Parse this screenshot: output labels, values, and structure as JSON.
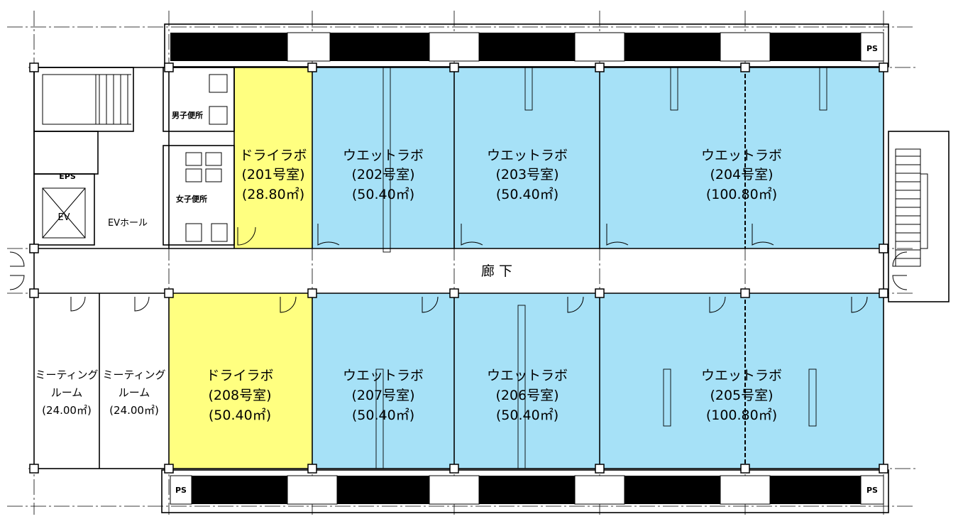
{
  "rooms": {
    "r201": {
      "name": "ドライラボ",
      "number": "(201号室)",
      "area": "(28.80㎡)"
    },
    "r202": {
      "name": "ウエットラボ",
      "number": "(202号室)",
      "area": "(50.40㎡)"
    },
    "r203": {
      "name": "ウエットラボ",
      "number": "(203号室)",
      "area": "(50.40㎡)"
    },
    "r204": {
      "name": "ウエットラボ",
      "number": "(204号室)",
      "area": "(100.80㎡)"
    },
    "r205": {
      "name": "ウエットラボ",
      "number": "(205号室)",
      "area": "(100.80㎡)"
    },
    "r206": {
      "name": "ウエットラボ",
      "number": "(206号室)",
      "area": "(50.40㎡)"
    },
    "r207": {
      "name": "ウエットラボ",
      "number": "(207号室)",
      "area": "(50.40㎡)"
    },
    "r208": {
      "name": "ドライラボ",
      "number": "(208号室)",
      "area": "(50.40㎡)"
    },
    "meeting1": {
      "line1": "ミーティング",
      "line2": "ルーム",
      "area": "(24.00㎡)"
    },
    "meeting2": {
      "line1": "ミーティング",
      "line2": "ルーム",
      "area": "(24.00㎡)"
    }
  },
  "labels": {
    "corridor": "廊 下",
    "ev_hall": "EVホール",
    "ev": "EV",
    "eps": "EPS",
    "mens_toilet": "男子便所",
    "womens_toilet": "女子便所",
    "ps_top": "PS",
    "ps_bottom_left": "PS",
    "ps_bottom_right": "PS"
  },
  "colors": {
    "dry_lab": "#ffff80",
    "wet_lab": "#a6e1f7",
    "wall": "#000000",
    "background": "#ffffff"
  }
}
